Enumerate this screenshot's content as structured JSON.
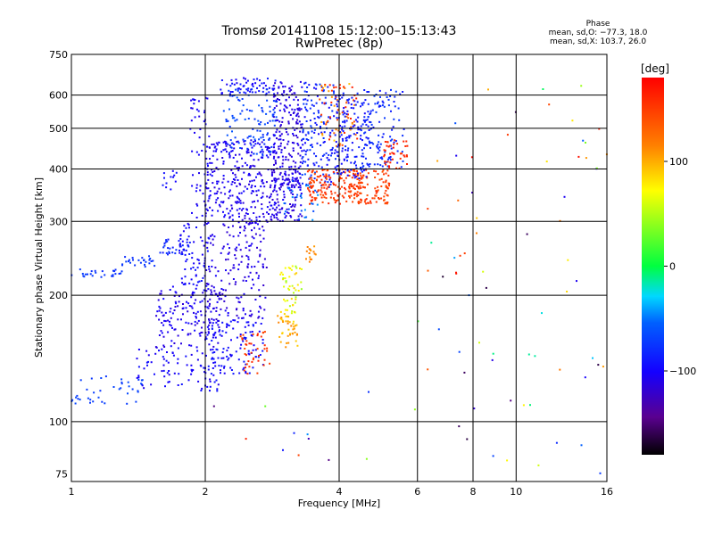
{
  "chart_data": {
    "type": "scatter",
    "title": "Tromsø 20141108 15:12:00–15:13:43",
    "subtitle": "RwPretec (8p)",
    "xlabel": "Frequency [MHz]",
    "ylabel": "Stationary phase Virtual Height [km]",
    "xscale": "log",
    "yscale": "log",
    "xlim": [
      1,
      16
    ],
    "ylim": [
      72,
      750
    ],
    "xticks": [
      1,
      2,
      4,
      6,
      8,
      10,
      16
    ],
    "xticklabels": [
      "1",
      "2",
      "4",
      "6",
      "8",
      "10",
      "16"
    ],
    "xgrid": [
      2,
      4,
      6,
      8,
      10
    ],
    "yticks": [
      75,
      100,
      200,
      300,
      400,
      500,
      600,
      750
    ],
    "yticklabels": [
      "75",
      "100",
      "200",
      "300",
      "400",
      "500",
      "600",
      "750"
    ],
    "ygrid": [
      100,
      200,
      300,
      400,
      500,
      600
    ],
    "grid": true,
    "stats": {
      "header": "Phase",
      "line1": "mean, sd,O: −77.3, 18.0",
      "line2": "mean, sd,X: 103.7, 26.0"
    },
    "colorbar": {
      "label": "[deg]",
      "range": [
        -180,
        180
      ],
      "ticks": [
        100,
        0,
        -100
      ],
      "ticklabels": [
        "100",
        "0",
        "−100"
      ],
      "colormap": "rainbow (black → purple → blue → cyan → green → yellow → red)"
    },
    "series": [
      {
        "clusters": [
          {
            "f": [
              1.0,
              1.3
            ],
            "h": [
              220,
              232
            ],
            "phase": [
              -80,
              -70
            ],
            "n": 25
          },
          {
            "f": [
              1.3,
              1.55
            ],
            "h": [
              232,
              248
            ],
            "phase": [
              -80,
              -70
            ],
            "n": 25
          },
          {
            "f": [
              1.55,
              1.85
            ],
            "h": [
              250,
              272
            ],
            "phase": [
              -95,
              -75
            ],
            "n": 35
          },
          {
            "f": [
              1.6,
              1.75
            ],
            "h": [
              355,
              400
            ],
            "phase": [
              -100,
              -85
            ],
            "n": 12
          },
          {
            "f": [
              1.0,
              1.45
            ],
            "h": [
              110,
              130
            ],
            "phase": [
              -75,
              -65
            ],
            "n": 40
          },
          {
            "f": [
              1.4,
              2.2
            ],
            "h": [
              118,
              150
            ],
            "phase": [
              -110,
              -90
            ],
            "n": 90
          },
          {
            "f": [
              1.55,
              2.2
            ],
            "h": [
              150,
              210
            ],
            "phase": [
              -115,
              -95
            ],
            "n": 150
          },
          {
            "f": [
              1.75,
              2.05
            ],
            "h": [
              210,
              300
            ],
            "phase": [
              -105,
              -90
            ],
            "n": 70
          },
          {
            "f": [
              2.0,
              2.7
            ],
            "h": [
              130,
              175
            ],
            "phase": [
              -105,
              -85
            ],
            "n": 110
          },
          {
            "f": [
              2.0,
              2.75
            ],
            "h": [
              175,
              300
            ],
            "phase": [
              -120,
              -100
            ],
            "n": 180
          },
          {
            "f": [
              1.85,
              2.05
            ],
            "h": [
              300,
              600
            ],
            "phase": [
              -110,
              -95
            ],
            "n": 60
          },
          {
            "f": [
              2.0,
              2.9
            ],
            "h": [
              295,
              470
            ],
            "phase": [
              -115,
              -95
            ],
            "n": 300
          },
          {
            "f": [
              2.2,
              2.9
            ],
            "h": [
              430,
              620
            ],
            "phase": [
              -80,
              -60
            ],
            "n": 110
          },
          {
            "f": [
              2.15,
              2.9
            ],
            "h": [
              600,
              660
            ],
            "phase": [
              -105,
              -85
            ],
            "n": 60
          },
          {
            "f": [
              2.8,
              3.3
            ],
            "h": [
              300,
              400
            ],
            "phase": [
              -120,
              -100
            ],
            "n": 90
          },
          {
            "f": [
              2.85,
              3.3
            ],
            "h": [
              360,
              650
            ],
            "phase": [
              -120,
              -100
            ],
            "n": 200
          },
          {
            "f": [
              3.3,
              3.9
            ],
            "h": [
              360,
              650
            ],
            "phase": [
              -100,
              -70
            ],
            "n": 150
          },
          {
            "f": [
              3.0,
              3.6
            ],
            "h": [
              300,
              400
            ],
            "phase": [
              -70,
              -40
            ],
            "n": 35
          },
          {
            "f": [
              3.4,
              4.5
            ],
            "h": [
              330,
              400
            ],
            "phase": [
              140,
              165
            ],
            "n": 160
          },
          {
            "f": [
              3.6,
              4.4
            ],
            "h": [
              450,
              640
            ],
            "phase": [
              90,
              170
            ],
            "n": 70
          },
          {
            "f": [
              4.2,
              5.2
            ],
            "h": [
              330,
              400
            ],
            "phase": [
              140,
              160
            ],
            "n": 110
          },
          {
            "f": [
              3.9,
              4.7
            ],
            "h": [
              380,
              620
            ],
            "phase": [
              -100,
              -80
            ],
            "n": 160
          },
          {
            "f": [
              4.5,
              5.6
            ],
            "h": [
              400,
              620
            ],
            "phase": [
              -90,
              -70
            ],
            "n": 110
          },
          {
            "f": [
              5.0,
              5.7
            ],
            "h": [
              400,
              470
            ],
            "phase": [
              150,
              175
            ],
            "n": 40
          },
          {
            "f": [
              2.4,
              2.8
            ],
            "h": [
              130,
              165
            ],
            "phase": [
              140,
              165
            ],
            "n": 40
          },
          {
            "f": [
              2.9,
              3.3
            ],
            "h": [
              150,
              180
            ],
            "phase": [
              80,
              120
            ],
            "n": 40
          },
          {
            "f": [
              2.95,
              3.3
            ],
            "h": [
              180,
              235
            ],
            "phase": [
              40,
              90
            ],
            "n": 50
          },
          {
            "f": [
              3.35,
              3.55
            ],
            "h": [
              240,
              262
            ],
            "phase": [
              100,
              120
            ],
            "n": 15
          },
          {
            "f": [
              6.0,
              16.0
            ],
            "h": [
              75,
              640
            ],
            "phase": [
              -180,
              180
            ],
            "n": 70
          },
          {
            "f": [
              2.0,
              6.0
            ],
            "h": [
              80,
              120
            ],
            "phase": [
              -150,
              170
            ],
            "n": 12
          }
        ]
      }
    ]
  }
}
